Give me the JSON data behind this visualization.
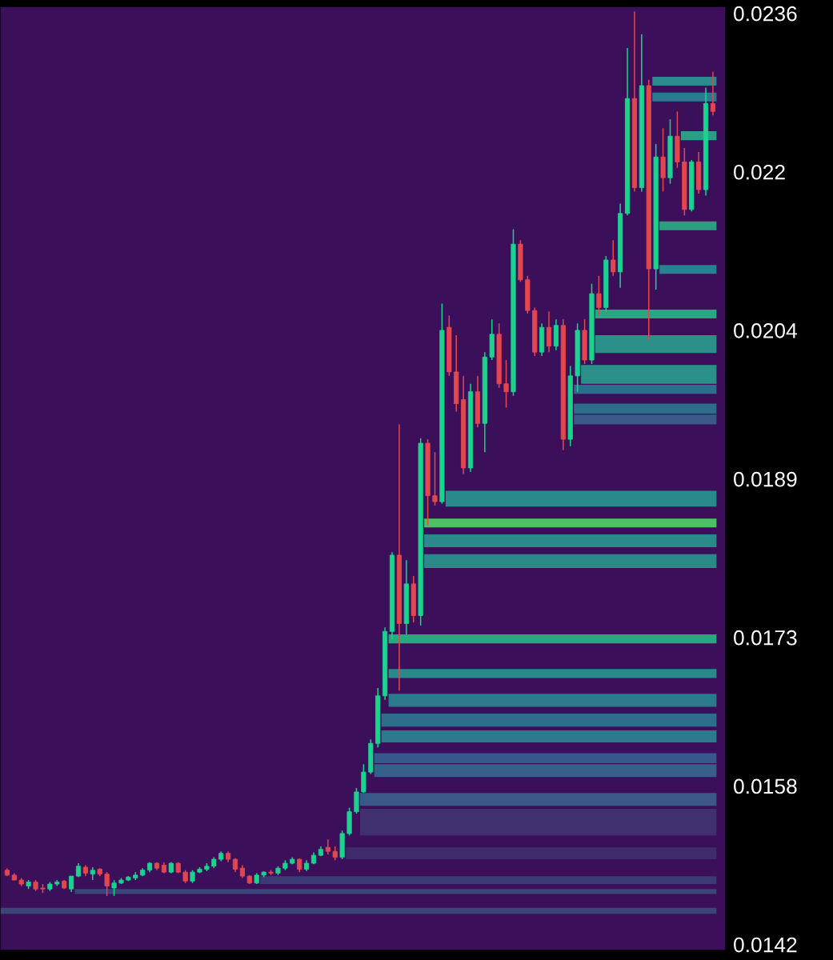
{
  "chart_data": {
    "type": "candlestick",
    "categories": [
      null,
      null,
      null,
      null,
      null,
      null,
      null,
      null,
      null,
      null,
      null,
      null,
      null,
      null,
      null,
      null,
      null,
      null,
      null,
      null,
      null,
      null,
      null,
      null,
      null,
      null,
      null,
      null,
      null,
      null,
      null,
      null,
      null,
      null,
      null,
      null,
      null,
      null,
      null,
      null,
      null,
      null,
      null,
      null,
      null,
      null,
      null,
      null,
      null,
      null,
      null,
      null,
      null,
      null,
      null,
      null,
      null,
      null,
      null,
      null,
      null,
      null,
      null,
      null,
      null,
      null,
      null,
      null,
      null,
      null,
      null,
      null,
      null,
      null,
      null,
      null,
      null,
      null,
      null,
      null,
      null,
      null,
      null,
      null,
      null,
      null,
      null,
      null,
      null,
      null,
      null,
      null,
      null,
      null,
      null,
      null,
      null,
      null,
      null,
      null
    ],
    "ohlc": [
      [
        0.01495,
        0.01497,
        0.01489,
        0.0149
      ],
      [
        0.0149,
        0.01492,
        0.01485,
        0.01485
      ],
      [
        0.01485,
        0.01487,
        0.01479,
        0.01481
      ],
      [
        0.01479,
        0.01485,
        0.01476,
        0.01483
      ],
      [
        0.01483,
        0.01485,
        0.01474,
        0.01476
      ],
      [
        0.01477,
        0.01481,
        0.01472,
        0.01476
      ],
      [
        0.01476,
        0.01483,
        0.01474,
        0.01481
      ],
      [
        0.01481,
        0.01485,
        0.01479,
        0.01483
      ],
      [
        0.01484,
        0.01485,
        0.01476,
        0.01477
      ],
      [
        0.01476,
        0.01489,
        0.01473,
        0.01489
      ],
      [
        0.01489,
        0.01502,
        0.01488,
        0.01499
      ],
      [
        0.01498,
        0.015,
        0.01489,
        0.01492
      ],
      [
        0.01491,
        0.01498,
        0.01485,
        0.01495
      ],
      [
        0.01496,
        0.01497,
        0.01489,
        0.01491
      ],
      [
        0.01491,
        0.01493,
        0.01469,
        0.01479
      ],
      [
        0.01477,
        0.01485,
        0.01469,
        0.01482
      ],
      [
        0.01482,
        0.01487,
        0.01481,
        0.01485
      ],
      [
        0.01485,
        0.01489,
        0.01484,
        0.01488
      ],
      [
        0.01487,
        0.01493,
        0.01485,
        0.0149
      ],
      [
        0.0149,
        0.01497,
        0.01489,
        0.01495
      ],
      [
        0.01495,
        0.01503,
        0.01493,
        0.01502
      ],
      [
        0.01502,
        0.01503,
        0.01495,
        0.01497
      ],
      [
        0.015,
        0.01503,
        0.01492,
        0.01493
      ],
      [
        0.01493,
        0.01503,
        0.01492,
        0.01502
      ],
      [
        0.01502,
        0.01503,
        0.01492,
        0.01493
      ],
      [
        0.01493,
        0.01495,
        0.01482,
        0.01484
      ],
      [
        0.01484,
        0.01495,
        0.01482,
        0.01493
      ],
      [
        0.01493,
        0.01498,
        0.01492,
        0.01496
      ],
      [
        0.01496,
        0.01502,
        0.01494,
        0.01499
      ],
      [
        0.01499,
        0.01508,
        0.01497,
        0.01506
      ],
      [
        0.01506,
        0.01514,
        0.01504,
        0.01512
      ],
      [
        0.01512,
        0.01514,
        0.01503,
        0.01506
      ],
      [
        0.01506,
        0.01507,
        0.01493,
        0.01496
      ],
      [
        0.01497,
        0.015,
        0.01487,
        0.01489
      ],
      [
        0.01489,
        0.0149,
        0.01481,
        0.01482
      ],
      [
        0.01482,
        0.01492,
        0.01481,
        0.0149
      ],
      [
        0.0149,
        0.01494,
        0.01488,
        0.01493
      ],
      [
        0.01493,
        0.01495,
        0.0149,
        0.01492
      ],
      [
        0.01492,
        0.01499,
        0.0149,
        0.01497
      ],
      [
        0.01497,
        0.01505,
        0.01495,
        0.01502
      ],
      [
        0.01502,
        0.01508,
        0.01501,
        0.01506
      ],
      [
        0.01506,
        0.01507,
        0.01493,
        0.01496
      ],
      [
        0.01496,
        0.01505,
        0.01494,
        0.01502
      ],
      [
        0.01502,
        0.01513,
        0.01501,
        0.0151
      ],
      [
        0.0151,
        0.01519,
        0.01509,
        0.01516
      ],
      [
        0.01518,
        0.01526,
        0.01511,
        0.01514
      ],
      [
        0.01514,
        0.01519,
        0.01505,
        0.01508
      ],
      [
        0.01508,
        0.01535,
        0.01506,
        0.01532
      ],
      [
        0.01532,
        0.01558,
        0.0153,
        0.01554
      ],
      [
        0.01554,
        0.01578,
        0.01552,
        0.01574
      ],
      [
        0.01574,
        0.01602,
        0.01573,
        0.01594
      ],
      [
        0.01594,
        0.01627,
        0.01592,
        0.01623
      ],
      [
        0.01623,
        0.01679,
        0.01619,
        0.01671
      ],
      [
        0.01671,
        0.0174,
        0.01667,
        0.01736
      ],
      [
        0.01736,
        0.01816,
        0.01728,
        0.01813
      ],
      [
        0.01813,
        0.01945,
        0.01676,
        0.01744
      ],
      [
        0.01744,
        0.01808,
        0.01733,
        0.01784
      ],
      [
        0.01784,
        0.01792,
        0.01745,
        0.01752
      ],
      [
        0.01752,
        0.01931,
        0.01742,
        0.01926
      ],
      [
        0.01926,
        0.0193,
        0.01843,
        0.01873
      ],
      [
        0.01873,
        0.01917,
        0.01863,
        0.01867
      ],
      [
        0.01867,
        0.02067,
        0.01865,
        0.0204
      ],
      [
        0.02043,
        0.02055,
        0.01994,
        0.01998
      ],
      [
        0.01998,
        0.02035,
        0.01958,
        0.01966
      ],
      [
        0.0197,
        0.01994,
        0.01895,
        0.01901
      ],
      [
        0.01901,
        0.01986,
        0.01897,
        0.01978
      ],
      [
        0.01978,
        0.01994,
        0.01942,
        0.01946
      ],
      [
        0.01946,
        0.02018,
        0.01917,
        0.02013
      ],
      [
        0.02013,
        0.02051,
        0.0201,
        0.02036
      ],
      [
        0.02036,
        0.02047,
        0.01982,
        0.01986
      ],
      [
        0.01986,
        0.0201,
        0.01962,
        0.01978
      ],
      [
        0.01978,
        0.02142,
        0.01974,
        0.02127
      ],
      [
        0.02127,
        0.02131,
        0.02089,
        0.02091
      ],
      [
        0.02091,
        0.02095,
        0.02057,
        0.0206
      ],
      [
        0.0206,
        0.02063,
        0.02014,
        0.02018
      ],
      [
        0.02018,
        0.02047,
        0.02014,
        0.02043
      ],
      [
        0.02043,
        0.02059,
        0.02018,
        0.02024
      ],
      [
        0.02024,
        0.02051,
        0.0202,
        0.02045
      ],
      [
        0.02045,
        0.02051,
        0.01919,
        0.0193
      ],
      [
        0.0193,
        0.02004,
        0.01923,
        0.01994
      ],
      [
        0.01994,
        0.02047,
        0.01978,
        0.0204
      ],
      [
        0.0204,
        0.02051,
        0.02006,
        0.0201
      ],
      [
        0.0201,
        0.02087,
        0.02006,
        0.02077
      ],
      [
        0.02077,
        0.02095,
        0.02055,
        0.02063
      ],
      [
        0.02063,
        0.02115,
        0.02059,
        0.02111
      ],
      [
        0.02111,
        0.02131,
        0.02095,
        0.02099
      ],
      [
        0.02099,
        0.02168,
        0.02083,
        0.02158
      ],
      [
        0.02158,
        0.02325,
        0.02156,
        0.02274
      ],
      [
        0.02274,
        0.02362,
        0.0218,
        0.02184
      ],
      [
        0.02184,
        0.02339,
        0.0218,
        0.02287
      ],
      [
        0.02287,
        0.02293,
        0.0203,
        0.02102
      ],
      [
        0.02102,
        0.02228,
        0.02081,
        0.02215
      ],
      [
        0.02215,
        0.02244,
        0.0218,
        0.02194
      ],
      [
        0.02194,
        0.02253,
        0.02188,
        0.02236
      ],
      [
        0.02236,
        0.02261,
        0.02204,
        0.0221
      ],
      [
        0.0221,
        0.02224,
        0.02156,
        0.02162
      ],
      [
        0.02162,
        0.02212,
        0.0216,
        0.0221
      ],
      [
        0.0221,
        0.0222,
        0.02178,
        0.02182
      ],
      [
        0.02182,
        0.02285,
        0.02176,
        0.02269
      ],
      [
        0.02269,
        0.02301,
        0.02257,
        0.02261
      ]
    ],
    "colors": [
      "#e2474f",
      "#e2474f",
      "#e2474f",
      "#1ad38e",
      "#e2474f",
      "#e2474f",
      "#1ad38e",
      "#1ad38e",
      "#e2474f",
      "#1ad38e",
      "#1ad38e",
      "#e2474f",
      "#1ad38e",
      "#e2474f",
      "#e2474f",
      "#1ad38e",
      "#1ad38e",
      "#1ad38e",
      "#1ad38e",
      "#1ad38e",
      "#1ad38e",
      "#e2474f",
      "#e2474f",
      "#1ad38e",
      "#e2474f",
      "#e2474f",
      "#1ad38e",
      "#1ad38e",
      "#1ad38e",
      "#1ad38e",
      "#1ad38e",
      "#e2474f",
      "#e2474f",
      "#e2474f",
      "#e2474f",
      "#1ad38e",
      "#1ad38e",
      "#e2474f",
      "#1ad38e",
      "#1ad38e",
      "#1ad38e",
      "#e2474f",
      "#1ad38e",
      "#1ad38e",
      "#1ad38e",
      "#e2474f",
      "#e2474f",
      "#1ad38e",
      "#1ad38e",
      "#1ad38e",
      "#1ad38e",
      "#1ad38e",
      "#1ad38e",
      "#1ad38e",
      "#1ad38e",
      "#e2474f",
      "#1ad38e",
      "#e2474f",
      "#1ad38e",
      "#e2474f",
      "#e2474f",
      "#1ad38e",
      "#e2474f",
      "#e2474f",
      "#e2474f",
      "#1ad38e",
      "#e2474f",
      "#1ad38e",
      "#1ad38e",
      "#e2474f",
      "#e2474f",
      "#1ad38e",
      "#e2474f",
      "#e2474f",
      "#e2474f",
      "#1ad38e",
      "#e2474f",
      "#1ad38e",
      "#e2474f",
      "#1ad38e",
      "#1ad38e",
      "#e2474f",
      "#1ad38e",
      "#e2474f",
      "#1ad38e",
      "#e2474f",
      "#1ad38e",
      "#1ad38e",
      "#e2474f",
      "#1ad38e",
      "#e2474f",
      "#1ad38e",
      "#e2474f",
      "#1ad38e",
      "#e2474f",
      "#e2474f",
      "#1ad38e",
      "#e2474f",
      "#1ad38e",
      "#e2474f"
    ],
    "ylim": [
      0.01414,
      0.02367
    ],
    "yticks": [
      0.0142,
      0.0158,
      0.0173,
      0.0189,
      0.0204,
      0.022,
      0.0236
    ],
    "tick_labels": "y",
    "bands": [
      {
        "axis": "y",
        "from": 0.02287,
        "to": 0.02296,
        "color": "#2a8a8e"
      },
      {
        "axis": "y",
        "from": 0.02271,
        "to": 0.0228,
        "color": "#2b7b8e"
      },
      {
        "axis": "y",
        "from": 0.02232,
        "to": 0.02241,
        "color": "#29a085"
      },
      {
        "axis": "y",
        "from": 0.02141,
        "to": 0.0215,
        "color": "#2aa080"
      },
      {
        "axis": "y",
        "from": 0.02097,
        "to": 0.02106,
        "color": "#2a8090"
      },
      {
        "axis": "y",
        "from": 0.02052,
        "to": 0.02061,
        "color": "#27a882"
      },
      {
        "axis": "y",
        "from": 0.02017,
        "to": 0.02035,
        "color": "#2a9088"
      },
      {
        "axis": "y",
        "from": 0.01986,
        "to": 0.02005,
        "color": "#2a9088"
      },
      {
        "axis": "y",
        "from": 0.01976,
        "to": 0.01985,
        "color": "#2e6e8c"
      },
      {
        "axis": "y",
        "from": 0.01956,
        "to": 0.01966,
        "color": "#2e6e8c"
      },
      {
        "axis": "y",
        "from": 0.01945,
        "to": 0.01955,
        "color": "#3a5888"
      },
      {
        "axis": "y",
        "from": 0.01862,
        "to": 0.01878,
        "color": "#2a8a8a"
      },
      {
        "axis": "y",
        "from": 0.01841,
        "to": 0.0185,
        "color": "#4cc062"
      },
      {
        "axis": "y",
        "from": 0.01821,
        "to": 0.01834,
        "color": "#2a8a8a"
      },
      {
        "axis": "y",
        "from": 0.018,
        "to": 0.01814,
        "color": "#2a8a8a"
      },
      {
        "axis": "y",
        "from": 0.01724,
        "to": 0.01733,
        "color": "#28a87e"
      },
      {
        "axis": "y",
        "from": 0.01689,
        "to": 0.01698,
        "color": "#2a8a8a"
      },
      {
        "axis": "y",
        "from": 0.0166,
        "to": 0.01673,
        "color": "#2a7a8c"
      },
      {
        "axis": "y",
        "from": 0.0164,
        "to": 0.01653,
        "color": "#2e6e8c"
      },
      {
        "axis": "y",
        "from": 0.01624,
        "to": 0.01636,
        "color": "#2e7a8c"
      },
      {
        "axis": "y",
        "from": 0.01603,
        "to": 0.01613,
        "color": "#37588a"
      },
      {
        "axis": "y",
        "from": 0.01589,
        "to": 0.01602,
        "color": "#34608a"
      },
      {
        "axis": "y",
        "from": 0.0156,
        "to": 0.01573,
        "color": "#3a5888"
      },
      {
        "axis": "y",
        "from": 0.0153,
        "to": 0.01557,
        "color": "#40306f"
      },
      {
        "axis": "y",
        "from": 0.01506,
        "to": 0.01518,
        "color": "#3e2c6c"
      },
      {
        "axis": "y",
        "from": 0.01481,
        "to": 0.01489,
        "color": "#3c3a74"
      },
      {
        "axis": "y",
        "from": 0.01471,
        "to": 0.01476,
        "color": "#3c4478"
      },
      {
        "axis": "y",
        "from": 0.01451,
        "to": 0.01457,
        "color": "#3c4478"
      }
    ]
  }
}
